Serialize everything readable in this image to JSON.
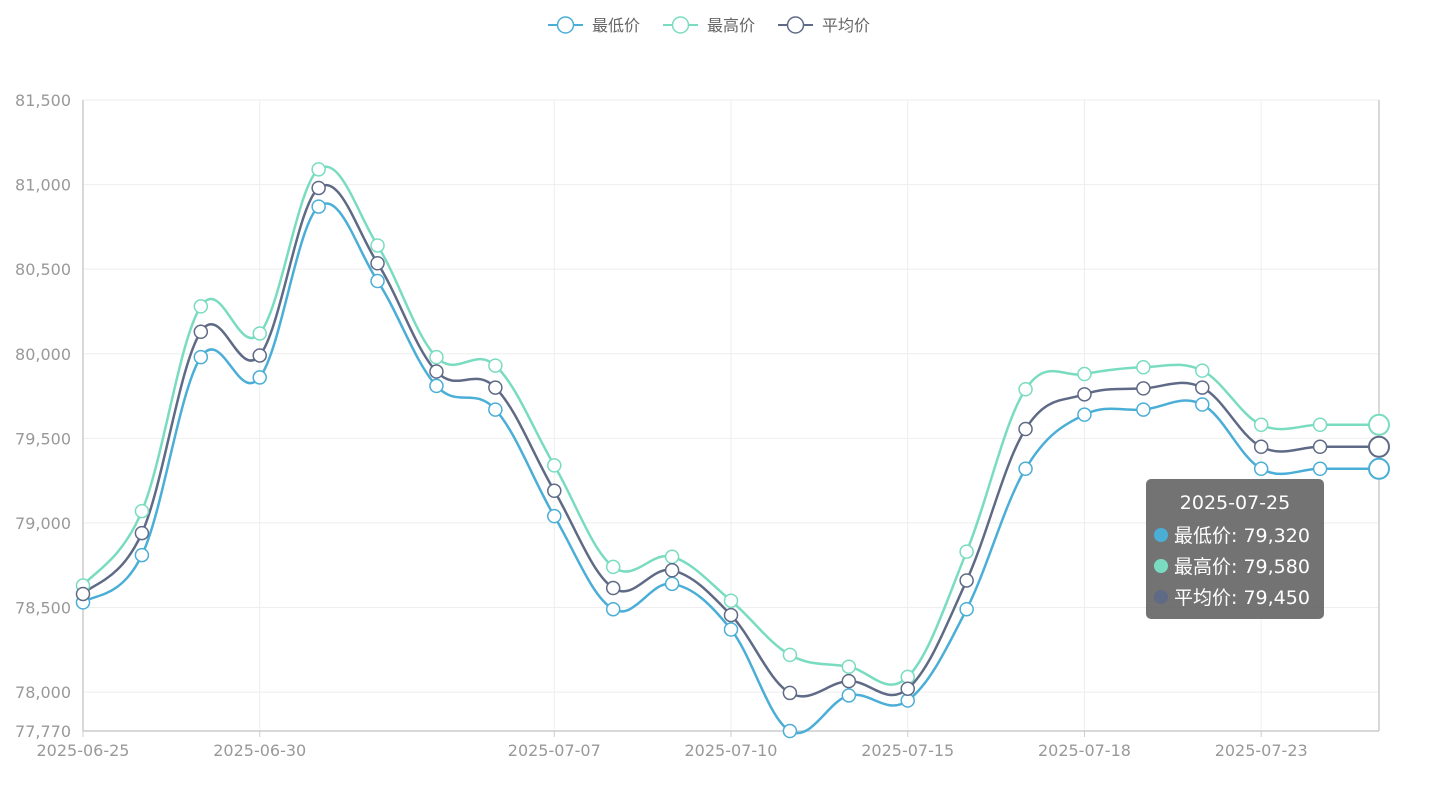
{
  "chart_data": {
    "type": "line",
    "smooth": true,
    "x": [
      "2025-06-25",
      "2025-06-26",
      "2025-06-27",
      "2025-06-30",
      "2025-07-01",
      "2025-07-02",
      "2025-07-03",
      "2025-07-04",
      "2025-07-07",
      "2025-07-08",
      "2025-07-09",
      "2025-07-10",
      "2025-07-11",
      "2025-07-14",
      "2025-07-15",
      "2025-07-16",
      "2025-07-17",
      "2025-07-18",
      "2025-07-21",
      "2025-07-22",
      "2025-07-23",
      "2025-07-24",
      "2025-07-25"
    ],
    "series": [
      {
        "name": "最低价",
        "color": "#4aaed7",
        "values": [
          78530,
          78810,
          79980,
          79860,
          80870,
          80430,
          79810,
          79670,
          79040,
          78490,
          78640,
          78370,
          77770,
          77980,
          77950,
          78490,
          79320,
          79640,
          79670,
          79700,
          79320,
          79320,
          79320
        ]
      },
      {
        "name": "最高价",
        "color": "#79dcc0",
        "values": [
          78630,
          79070,
          80280,
          80120,
          81090,
          80640,
          79980,
          79930,
          79340,
          78740,
          78800,
          78540,
          78220,
          78150,
          78090,
          78830,
          79790,
          79880,
          79920,
          79900,
          79580,
          79580,
          79580
        ]
      },
      {
        "name": "平均价",
        "color": "#5f6a86",
        "values": [
          78580,
          78940,
          80130,
          79990,
          80980,
          80535,
          79895,
          79800,
          79190,
          78615,
          78720,
          78455,
          77995,
          78065,
          78020,
          78660,
          79555,
          79760,
          79795,
          79800,
          79450,
          79450,
          79450
        ]
      }
    ],
    "xlabels_shown": [
      "2025-06-25",
      "2025-06-30",
      "2025-07-07",
      "2025-07-10",
      "2025-07-15",
      "2025-07-18",
      "2025-07-23"
    ],
    "yticks": [
      "81,500",
      "81,000",
      "80,500",
      "80,000",
      "79,500",
      "79,000",
      "78,500",
      "78,000",
      "77,770"
    ],
    "ylim": [
      77770,
      81500
    ],
    "grid": true,
    "legend_position": "top-center"
  },
  "legend": {
    "items": [
      {
        "label": "最低价",
        "color": "#4aaed7"
      },
      {
        "label": "最高价",
        "color": "#79dcc0"
      },
      {
        "label": "平均价",
        "color": "#5f6a86"
      }
    ]
  },
  "tooltip": {
    "title": "2025-07-25",
    "rows": [
      {
        "text": "最低价: 79,320",
        "color": "#4aaed7"
      },
      {
        "text": "最高价: 79,580",
        "color": "#79dcc0"
      },
      {
        "text": "平均价: 79,450",
        "color": "#5f6a86"
      }
    ]
  }
}
